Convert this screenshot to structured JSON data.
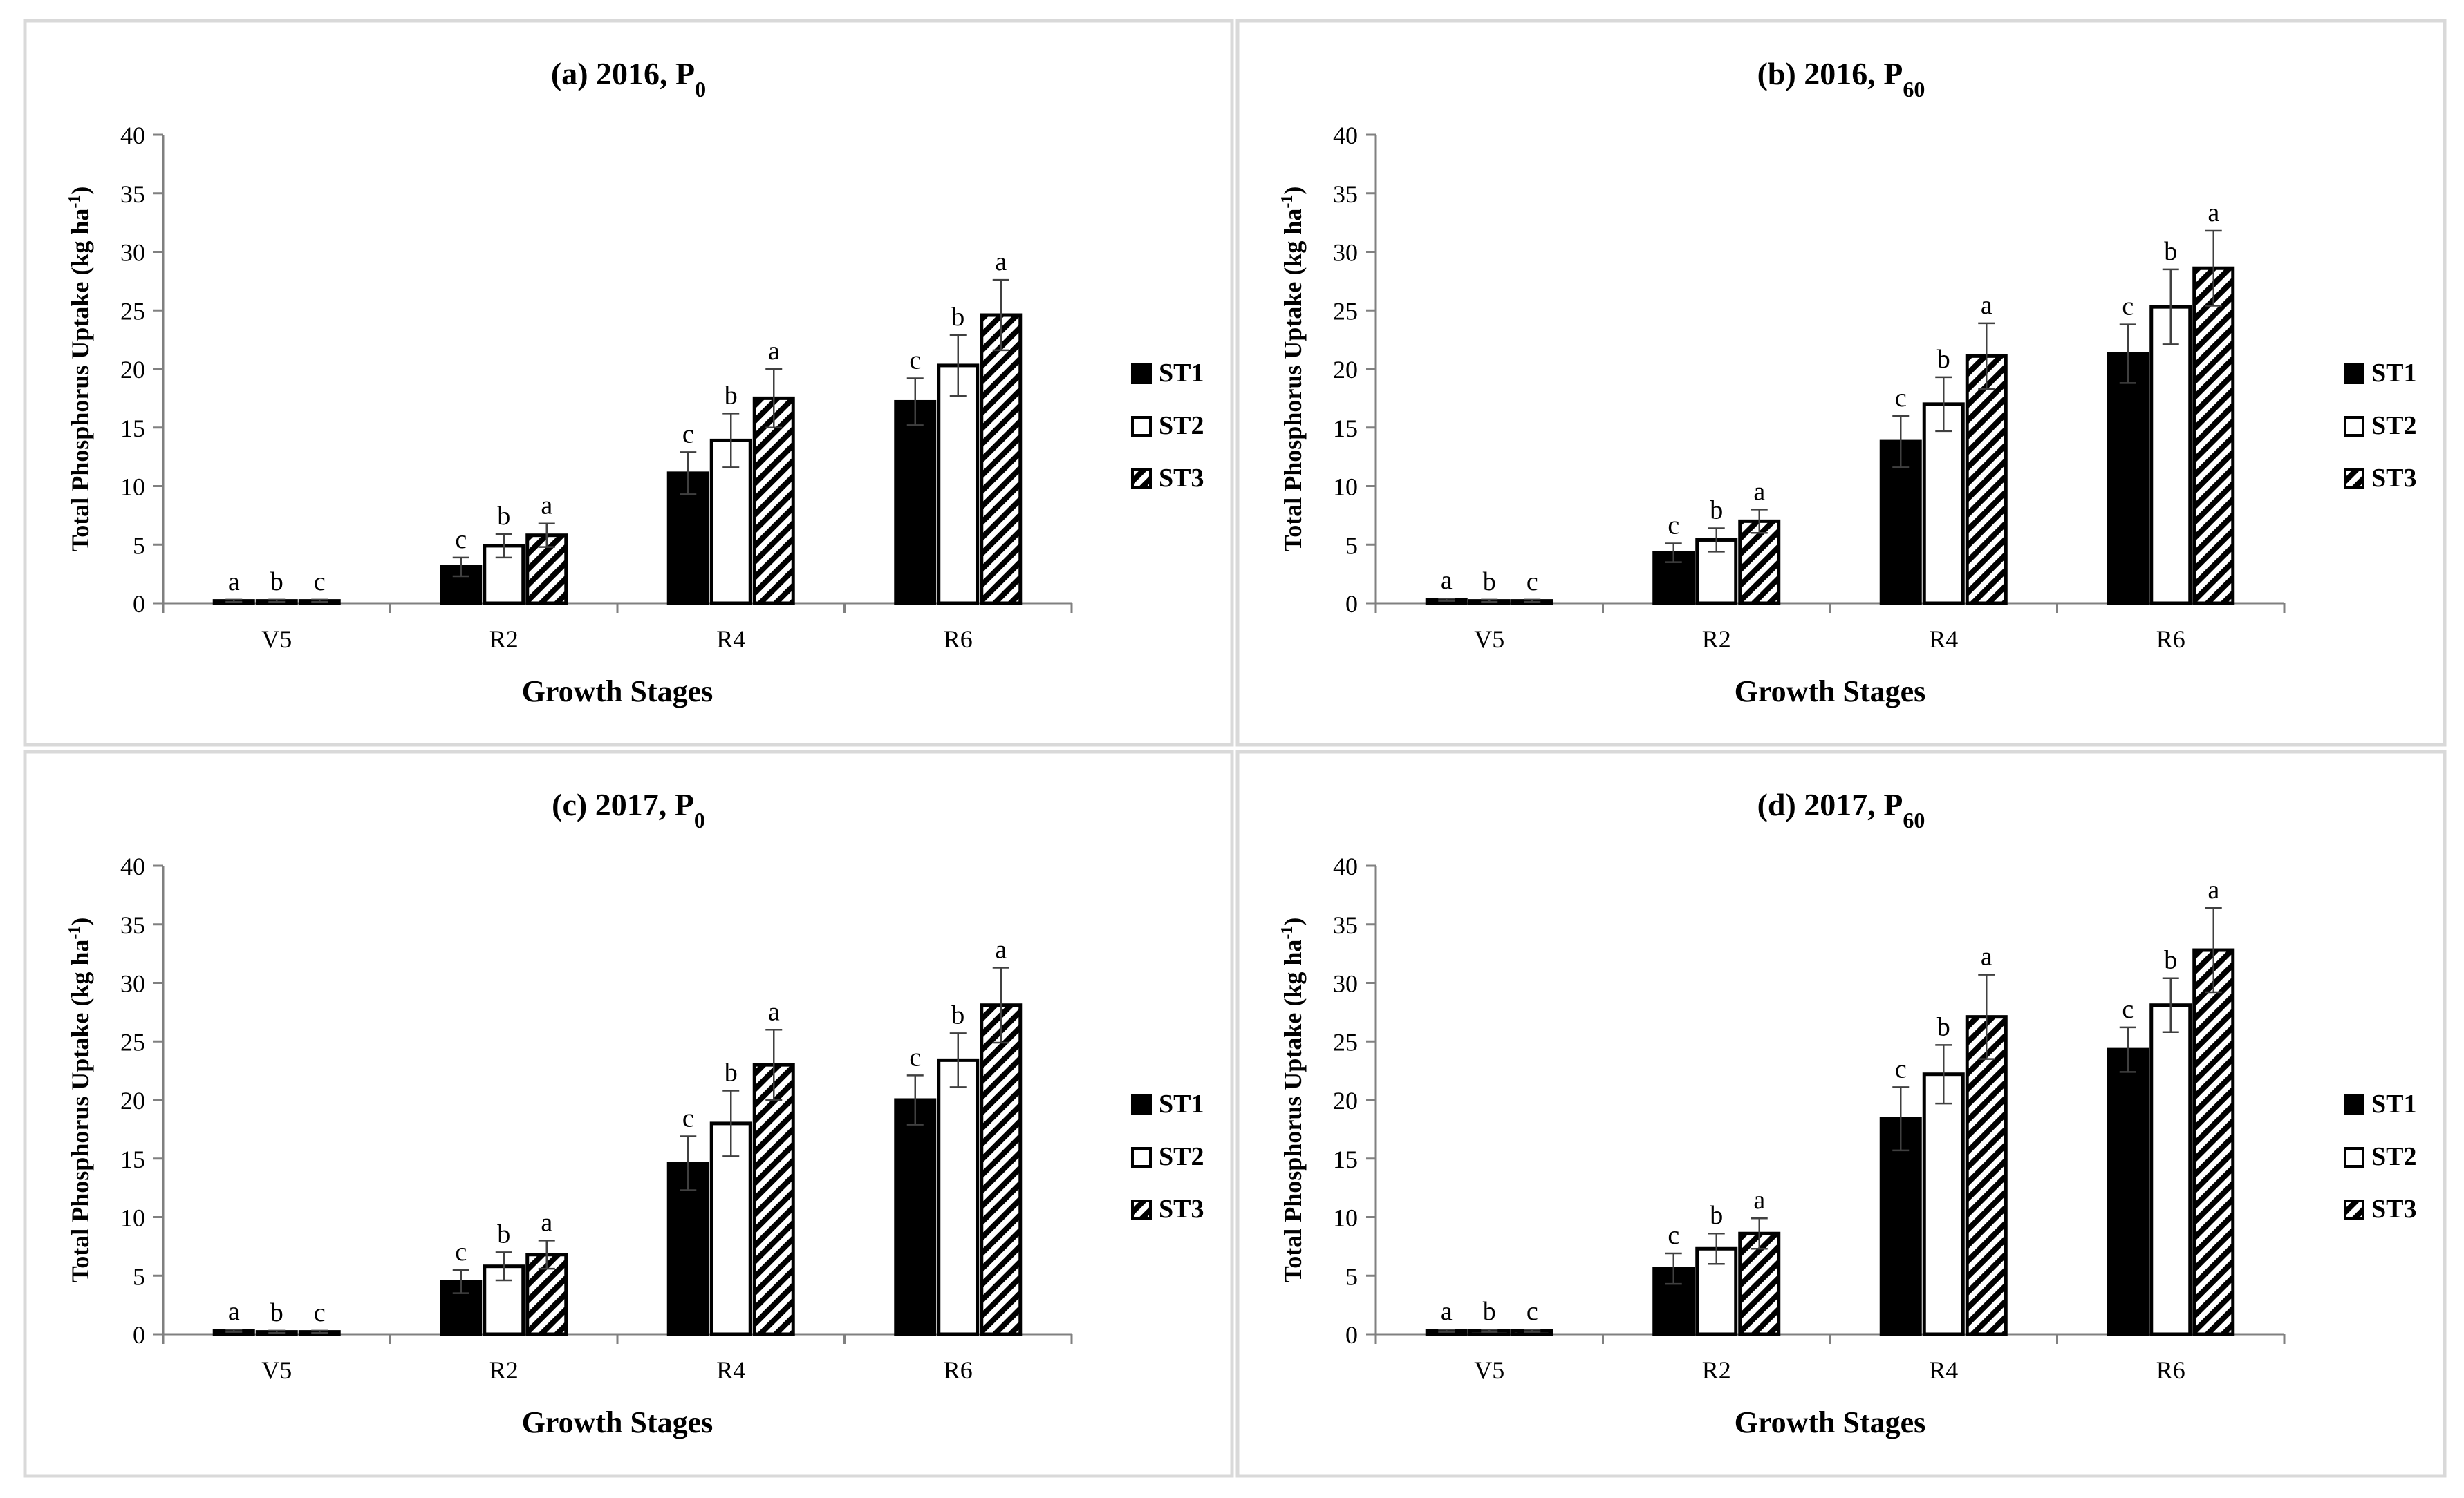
{
  "chart_data": [
    {
      "type": "bar",
      "panel": "a",
      "title_main": "(a) 2016, P",
      "title_sub": "0",
      "xlabel": "Growth Stages",
      "ylabel_main": "Total Phosphorus Uptake (kg ha",
      "ylabel_sup": "-1",
      "ylabel_close": ")",
      "ylim": [
        0,
        40
      ],
      "yticks": [
        "0",
        "5",
        "10",
        "15",
        "20",
        "25",
        "30",
        "35",
        "40"
      ],
      "categories": [
        "V5",
        "R2",
        "R4",
        "R6"
      ],
      "series": [
        {
          "name": "ST1",
          "values": [
            0.2,
            3.1,
            11.1,
            17.2
          ],
          "errors": [
            0.1,
            0.8,
            1.8,
            2.0
          ],
          "letters": [
            "a",
            "c",
            "c",
            "c"
          ]
        },
        {
          "name": "ST2",
          "values": [
            0.2,
            4.9,
            13.9,
            20.3
          ],
          "errors": [
            0.1,
            1.0,
            2.3,
            2.6
          ],
          "letters": [
            "b",
            "b",
            "b",
            "b"
          ]
        },
        {
          "name": "ST3",
          "values": [
            0.2,
            5.8,
            17.5,
            24.6
          ],
          "errors": [
            0.1,
            1.0,
            2.5,
            3.0
          ],
          "letters": [
            "c",
            "a",
            "a",
            "a"
          ]
        }
      ]
    },
    {
      "type": "bar",
      "panel": "b",
      "title_main": "(b) 2016, P",
      "title_sub": "60",
      "xlabel": "Growth Stages",
      "ylabel_main": "Total Phosphorus Uptake (kg ha",
      "ylabel_sup": "-1",
      "ylabel_close": ")",
      "ylim": [
        0,
        40
      ],
      "yticks": [
        "0",
        "5",
        "10",
        "15",
        "20",
        "25",
        "30",
        "35",
        "40"
      ],
      "categories": [
        "V5",
        "R2",
        "R4",
        "R6"
      ],
      "series": [
        {
          "name": "ST1",
          "values": [
            0.3,
            4.3,
            13.8,
            21.3
          ],
          "errors": [
            0.1,
            0.8,
            2.2,
            2.5
          ],
          "letters": [
            "a",
            "c",
            "c",
            "c"
          ]
        },
        {
          "name": "ST2",
          "values": [
            0.2,
            5.4,
            17.0,
            25.3
          ],
          "errors": [
            0.1,
            1.0,
            2.3,
            3.2
          ],
          "letters": [
            "b",
            "b",
            "b",
            "b"
          ]
        },
        {
          "name": "ST3",
          "values": [
            0.2,
            7.0,
            21.1,
            28.6
          ],
          "errors": [
            0.1,
            1.0,
            2.8,
            3.2
          ],
          "letters": [
            "c",
            "a",
            "a",
            "a"
          ]
        }
      ]
    },
    {
      "type": "bar",
      "panel": "c",
      "title_main": "(c) 2017, P",
      "title_sub": "0",
      "xlabel": "Growth Stages",
      "ylabel_main": "Total Phosphorus Uptake (kg ha",
      "ylabel_sup": "-1",
      "ylabel_close": ")",
      "ylim": [
        0,
        40
      ],
      "yticks": [
        "0",
        "5",
        "10",
        "15",
        "20",
        "25",
        "30",
        "35",
        "40"
      ],
      "categories": [
        "V5",
        "R2",
        "R4",
        "R6"
      ],
      "series": [
        {
          "name": "ST1",
          "values": [
            0.3,
            4.5,
            14.6,
            20.0
          ],
          "errors": [
            0.1,
            1.0,
            2.3,
            2.1
          ],
          "letters": [
            "a",
            "c",
            "c",
            "c"
          ]
        },
        {
          "name": "ST2",
          "values": [
            0.2,
            5.8,
            18.0,
            23.4
          ],
          "errors": [
            0.1,
            1.2,
            2.8,
            2.3
          ],
          "letters": [
            "b",
            "b",
            "b",
            "b"
          ]
        },
        {
          "name": "ST3",
          "values": [
            0.2,
            6.8,
            23.0,
            28.1
          ],
          "errors": [
            0.1,
            1.2,
            3.0,
            3.2
          ],
          "letters": [
            "c",
            "a",
            "a",
            "a"
          ]
        }
      ]
    },
    {
      "type": "bar",
      "panel": "d",
      "title_main": "(d) 2017, P",
      "title_sub": "60",
      "xlabel": "Growth Stages",
      "ylabel_main": "Total Phosphorus Uptake (kg ha",
      "ylabel_sup": "-1",
      "ylabel_close": ")",
      "ylim": [
        0,
        40
      ],
      "yticks": [
        "0",
        "5",
        "10",
        "15",
        "20",
        "25",
        "30",
        "35",
        "40"
      ],
      "categories": [
        "V5",
        "R2",
        "R4",
        "R6"
      ],
      "series": [
        {
          "name": "ST1",
          "values": [
            0.3,
            5.6,
            18.4,
            24.3
          ],
          "errors": [
            0.1,
            1.3,
            2.7,
            1.9
          ],
          "letters": [
            "a",
            "c",
            "c",
            "c"
          ]
        },
        {
          "name": "ST2",
          "values": [
            0.3,
            7.3,
            22.2,
            28.1
          ],
          "errors": [
            0.1,
            1.3,
            2.5,
            2.3
          ],
          "letters": [
            "b",
            "b",
            "b",
            "b"
          ]
        },
        {
          "name": "ST3",
          "values": [
            0.3,
            8.6,
            27.1,
            32.8
          ],
          "errors": [
            0.1,
            1.3,
            3.6,
            3.6
          ],
          "letters": [
            "c",
            "a",
            "a",
            "a"
          ]
        }
      ]
    }
  ],
  "colors": {
    "st1_fill": "#000000",
    "st2_fill": "#ffffff",
    "st3_stripe": "#000000",
    "axis": "#808080",
    "panel_border": "#d9d9d9",
    "error_bar": "#404040"
  }
}
